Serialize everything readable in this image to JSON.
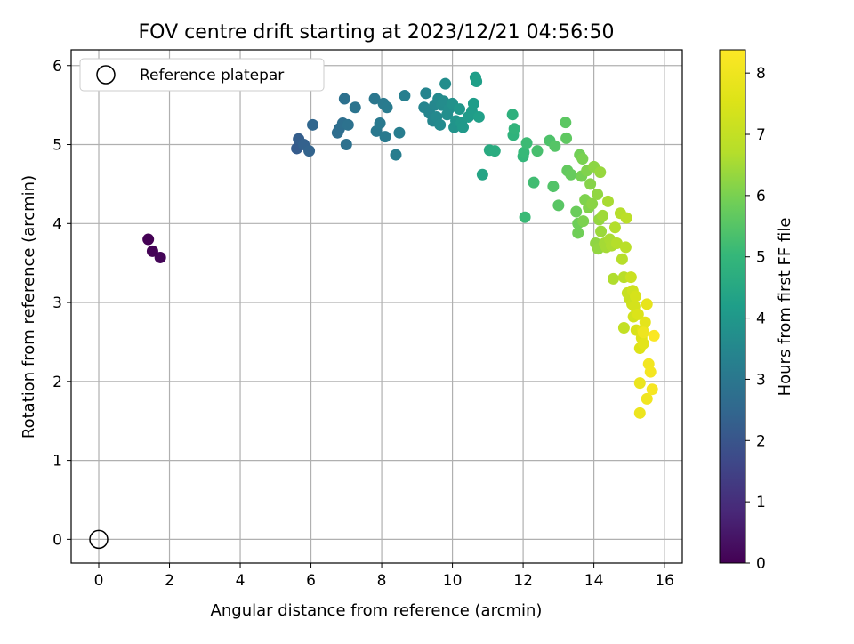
{
  "chart_data": {
    "type": "scatter",
    "title": "FOV centre drift starting at 2023/12/21 04:56:50",
    "xlabel": "Angular distance from reference (arcmin)",
    "ylabel": "Rotation from reference (arcmin)",
    "xlim": [
      -0.78,
      16.5
    ],
    "ylim": [
      -0.3,
      6.2
    ],
    "xticks": [
      0,
      2,
      4,
      6,
      8,
      10,
      12,
      14,
      16
    ],
    "yticks": [
      0,
      1,
      2,
      3,
      4,
      5,
      6
    ],
    "grid": true,
    "legend": {
      "position": "upper-left",
      "entries": [
        "Reference platepar"
      ]
    },
    "reference_point": {
      "x": 0,
      "y": 0,
      "marker": "open-circle"
    },
    "colorbar": {
      "label": "Hours from first FF file",
      "range": [
        0,
        8.38
      ],
      "ticks": [
        0,
        1,
        2,
        3,
        4,
        5,
        6,
        7,
        8
      ],
      "colormap": "viridis"
    },
    "points": [
      {
        "x": 1.4,
        "y": 3.8,
        "h": 0.0
      },
      {
        "x": 1.52,
        "y": 3.65,
        "h": 0.05
      },
      {
        "x": 1.74,
        "y": 3.57,
        "h": 0.1
      },
      {
        "x": 5.6,
        "y": 4.95,
        "h": 2.2
      },
      {
        "x": 5.65,
        "y": 5.07,
        "h": 2.25
      },
      {
        "x": 5.8,
        "y": 5.0,
        "h": 2.35
      },
      {
        "x": 5.95,
        "y": 4.92,
        "h": 2.4
      },
      {
        "x": 6.05,
        "y": 5.25,
        "h": 2.5
      },
      {
        "x": 6.75,
        "y": 5.15,
        "h": 2.7
      },
      {
        "x": 6.8,
        "y": 5.2,
        "h": 2.72
      },
      {
        "x": 6.9,
        "y": 5.27,
        "h": 2.75
      },
      {
        "x": 6.95,
        "y": 5.58,
        "h": 2.8
      },
      {
        "x": 7.0,
        "y": 5.0,
        "h": 2.82
      },
      {
        "x": 7.05,
        "y": 5.25,
        "h": 2.85
      },
      {
        "x": 7.25,
        "y": 5.47,
        "h": 2.9
      },
      {
        "x": 7.8,
        "y": 5.58,
        "h": 3.0
      },
      {
        "x": 7.85,
        "y": 5.17,
        "h": 3.02
      },
      {
        "x": 7.95,
        "y": 5.27,
        "h": 3.05
      },
      {
        "x": 8.05,
        "y": 5.52,
        "h": 3.08
      },
      {
        "x": 8.1,
        "y": 5.1,
        "h": 3.1
      },
      {
        "x": 8.15,
        "y": 5.47,
        "h": 3.12
      },
      {
        "x": 8.4,
        "y": 4.87,
        "h": 3.18
      },
      {
        "x": 8.5,
        "y": 5.15,
        "h": 3.2
      },
      {
        "x": 8.65,
        "y": 5.62,
        "h": 3.25
      },
      {
        "x": 9.2,
        "y": 5.47,
        "h": 3.4
      },
      {
        "x": 9.25,
        "y": 5.65,
        "h": 3.42
      },
      {
        "x": 9.35,
        "y": 5.4,
        "h": 3.45
      },
      {
        "x": 9.45,
        "y": 5.3,
        "h": 3.48
      },
      {
        "x": 9.5,
        "y": 5.5,
        "h": 3.5
      },
      {
        "x": 9.55,
        "y": 5.35,
        "h": 3.55
      },
      {
        "x": 9.6,
        "y": 5.58,
        "h": 3.57
      },
      {
        "x": 9.65,
        "y": 5.25,
        "h": 3.6
      },
      {
        "x": 9.7,
        "y": 5.5,
        "h": 3.62
      },
      {
        "x": 9.75,
        "y": 5.55,
        "h": 3.65
      },
      {
        "x": 9.8,
        "y": 5.77,
        "h": 3.68
      },
      {
        "x": 9.85,
        "y": 5.38,
        "h": 3.7
      },
      {
        "x": 9.9,
        "y": 5.45,
        "h": 3.72
      },
      {
        "x": 10.0,
        "y": 5.52,
        "h": 3.8
      },
      {
        "x": 10.05,
        "y": 5.22,
        "h": 3.85
      },
      {
        "x": 10.1,
        "y": 5.3,
        "h": 3.9
      },
      {
        "x": 10.2,
        "y": 5.45,
        "h": 3.95
      },
      {
        "x": 10.25,
        "y": 5.28,
        "h": 4.0
      },
      {
        "x": 10.3,
        "y": 5.22,
        "h": 4.05
      },
      {
        "x": 10.45,
        "y": 5.35,
        "h": 4.1
      },
      {
        "x": 10.55,
        "y": 5.42,
        "h": 4.12
      },
      {
        "x": 10.6,
        "y": 5.52,
        "h": 4.15
      },
      {
        "x": 10.65,
        "y": 5.85,
        "h": 4.2
      },
      {
        "x": 10.68,
        "y": 5.8,
        "h": 4.22
      },
      {
        "x": 10.75,
        "y": 5.35,
        "h": 4.25
      },
      {
        "x": 10.85,
        "y": 4.62,
        "h": 4.4
      },
      {
        "x": 11.05,
        "y": 4.93,
        "h": 4.6
      },
      {
        "x": 11.2,
        "y": 4.92,
        "h": 4.65
      },
      {
        "x": 11.7,
        "y": 5.38,
        "h": 4.8
      },
      {
        "x": 11.72,
        "y": 5.12,
        "h": 4.85
      },
      {
        "x": 11.75,
        "y": 5.2,
        "h": 4.9
      },
      {
        "x": 12.0,
        "y": 4.85,
        "h": 5.0
      },
      {
        "x": 12.02,
        "y": 4.9,
        "h": 5.05
      },
      {
        "x": 12.05,
        "y": 4.08,
        "h": 5.1
      },
      {
        "x": 12.1,
        "y": 5.02,
        "h": 5.15
      },
      {
        "x": 12.3,
        "y": 4.52,
        "h": 5.2
      },
      {
        "x": 12.4,
        "y": 4.92,
        "h": 5.3
      },
      {
        "x": 12.75,
        "y": 5.05,
        "h": 5.4
      },
      {
        "x": 12.85,
        "y": 4.47,
        "h": 5.45
      },
      {
        "x": 12.9,
        "y": 4.98,
        "h": 5.5
      },
      {
        "x": 13.0,
        "y": 4.23,
        "h": 5.55
      },
      {
        "x": 13.2,
        "y": 5.28,
        "h": 5.6
      },
      {
        "x": 13.22,
        "y": 5.08,
        "h": 5.65
      },
      {
        "x": 13.25,
        "y": 4.67,
        "h": 5.7
      },
      {
        "x": 13.35,
        "y": 4.62,
        "h": 5.75
      },
      {
        "x": 13.5,
        "y": 4.15,
        "h": 5.8
      },
      {
        "x": 13.55,
        "y": 4.0,
        "h": 5.85
      },
      {
        "x": 13.55,
        "y": 3.88,
        "h": 5.88
      },
      {
        "x": 13.6,
        "y": 4.87,
        "h": 5.9
      },
      {
        "x": 13.65,
        "y": 4.6,
        "h": 5.95
      },
      {
        "x": 13.68,
        "y": 4.82,
        "h": 6.0
      },
      {
        "x": 13.7,
        "y": 4.03,
        "h": 6.02
      },
      {
        "x": 13.75,
        "y": 4.3,
        "h": 6.05
      },
      {
        "x": 13.8,
        "y": 4.67,
        "h": 6.08
      },
      {
        "x": 13.85,
        "y": 4.2,
        "h": 6.1
      },
      {
        "x": 13.9,
        "y": 4.5,
        "h": 6.15
      },
      {
        "x": 13.95,
        "y": 4.25,
        "h": 6.2
      },
      {
        "x": 14.0,
        "y": 4.72,
        "h": 6.22
      },
      {
        "x": 14.05,
        "y": 3.75,
        "h": 6.25
      },
      {
        "x": 14.1,
        "y": 4.37,
        "h": 6.28
      },
      {
        "x": 14.12,
        "y": 3.68,
        "h": 6.3
      },
      {
        "x": 14.15,
        "y": 4.05,
        "h": 6.32
      },
      {
        "x": 14.18,
        "y": 4.65,
        "h": 6.35
      },
      {
        "x": 14.2,
        "y": 3.9,
        "h": 6.4
      },
      {
        "x": 14.25,
        "y": 4.1,
        "h": 6.45
      },
      {
        "x": 14.3,
        "y": 3.75,
        "h": 6.5
      },
      {
        "x": 14.35,
        "y": 3.7,
        "h": 6.52
      },
      {
        "x": 14.4,
        "y": 4.28,
        "h": 6.55
      },
      {
        "x": 14.45,
        "y": 3.8,
        "h": 6.58
      },
      {
        "x": 14.5,
        "y": 3.72,
        "h": 6.6
      },
      {
        "x": 14.55,
        "y": 3.3,
        "h": 6.65
      },
      {
        "x": 14.6,
        "y": 3.95,
        "h": 6.68
      },
      {
        "x": 14.65,
        "y": 3.75,
        "h": 6.7
      },
      {
        "x": 14.75,
        "y": 4.13,
        "h": 6.72
      },
      {
        "x": 14.8,
        "y": 3.55,
        "h": 6.75
      },
      {
        "x": 14.85,
        "y": 3.32,
        "h": 6.78
      },
      {
        "x": 14.9,
        "y": 3.7,
        "h": 6.8
      },
      {
        "x": 14.92,
        "y": 4.07,
        "h": 6.82
      },
      {
        "x": 14.85,
        "y": 2.68,
        "h": 7.0
      },
      {
        "x": 14.95,
        "y": 3.12,
        "h": 7.05
      },
      {
        "x": 15.0,
        "y": 3.05,
        "h": 7.1
      },
      {
        "x": 15.05,
        "y": 3.32,
        "h": 7.15
      },
      {
        "x": 15.08,
        "y": 2.98,
        "h": 7.2
      },
      {
        "x": 15.1,
        "y": 3.15,
        "h": 7.25
      },
      {
        "x": 15.12,
        "y": 2.82,
        "h": 7.3
      },
      {
        "x": 15.15,
        "y": 2.95,
        "h": 7.35
      },
      {
        "x": 15.18,
        "y": 3.08,
        "h": 7.4
      },
      {
        "x": 15.2,
        "y": 2.65,
        "h": 7.45
      },
      {
        "x": 15.25,
        "y": 2.85,
        "h": 7.5
      },
      {
        "x": 15.3,
        "y": 2.42,
        "h": 7.55
      },
      {
        "x": 15.35,
        "y": 2.55,
        "h": 7.6
      },
      {
        "x": 15.38,
        "y": 2.65,
        "h": 7.65
      },
      {
        "x": 15.4,
        "y": 2.48,
        "h": 7.7
      },
      {
        "x": 15.45,
        "y": 2.75,
        "h": 7.75
      },
      {
        "x": 15.5,
        "y": 2.98,
        "h": 7.8
      },
      {
        "x": 15.3,
        "y": 1.98,
        "h": 7.9
      },
      {
        "x": 15.3,
        "y": 1.6,
        "h": 7.95
      },
      {
        "x": 15.4,
        "y": 2.62,
        "h": 8.0
      },
      {
        "x": 15.5,
        "y": 1.78,
        "h": 8.05
      },
      {
        "x": 15.55,
        "y": 2.22,
        "h": 8.1
      },
      {
        "x": 15.6,
        "y": 2.12,
        "h": 8.15
      },
      {
        "x": 15.65,
        "y": 1.9,
        "h": 8.2
      },
      {
        "x": 15.7,
        "y": 2.58,
        "h": 8.3
      }
    ]
  }
}
